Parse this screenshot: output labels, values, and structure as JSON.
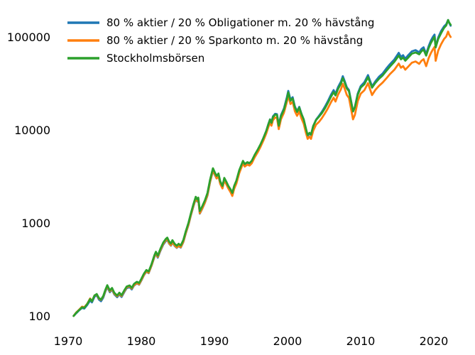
{
  "chart_data": {
    "type": "line",
    "title": "",
    "xlabel": "",
    "ylabel": "",
    "yscale": "log",
    "grid": false,
    "legend_position": "upper left",
    "xlim": [
      1969.2,
      2023.5
    ],
    "ylim": [
      85,
      210000
    ],
    "xticks": [
      1970,
      1980,
      1990,
      2000,
      2010,
      2020
    ],
    "yticks": [
      100,
      1000,
      10000,
      100000
    ],
    "x": [
      1970.75,
      1971.1,
      1971.5,
      1971.9,
      1972.2,
      1972.6,
      1973.0,
      1973.25,
      1973.6,
      1973.9,
      1974.2,
      1974.5,
      1974.8,
      1975.1,
      1975.35,
      1975.7,
      1976.0,
      1976.3,
      1976.7,
      1977.0,
      1977.3,
      1977.7,
      1978.0,
      1978.4,
      1978.7,
      1979.0,
      1979.4,
      1979.7,
      1980.0,
      1980.35,
      1980.7,
      1981.0,
      1981.4,
      1981.8,
      1982.0,
      1982.25,
      1982.6,
      1983.0,
      1983.35,
      1983.55,
      1983.8,
      1984.05,
      1984.25,
      1984.55,
      1984.85,
      1985.1,
      1985.4,
      1985.75,
      1986.1,
      1986.45,
      1986.8,
      1987.1,
      1987.45,
      1987.65,
      1987.8,
      1988.0,
      1988.35,
      1988.7,
      1989.05,
      1989.4,
      1989.8,
      1990.05,
      1990.3,
      1990.55,
      1990.8,
      1991.1,
      1991.35,
      1991.6,
      1991.9,
      1992.2,
      1992.45,
      1992.7,
      1993.0,
      1993.4,
      1993.9,
      1994.15,
      1994.5,
      1994.8,
      1995.1,
      1995.5,
      1995.9,
      1996.3,
      1996.7,
      1997.1,
      1997.35,
      1997.6,
      1997.8,
      1998.0,
      1998.3,
      1998.55,
      1998.8,
      1999.1,
      1999.5,
      1999.9,
      2000.1,
      2000.4,
      2000.7,
      2001.0,
      2001.3,
      2001.6,
      2001.9,
      2002.2,
      2002.5,
      2002.75,
      2003.0,
      2003.2,
      2003.5,
      2003.9,
      2004.3,
      2004.7,
      2005.1,
      2005.5,
      2005.9,
      2006.3,
      2006.55,
      2006.9,
      2007.3,
      2007.55,
      2007.8,
      2008.1,
      2008.4,
      2008.7,
      2008.95,
      2009.2,
      2009.6,
      2010.0,
      2010.5,
      2011.0,
      2011.55,
      2012.0,
      2012.5,
      2013.0,
      2013.5,
      2014.0,
      2014.6,
      2015.2,
      2015.5,
      2015.8,
      2016.1,
      2016.5,
      2017.0,
      2017.5,
      2018.0,
      2018.3,
      2018.6,
      2018.95,
      2019.3,
      2019.6,
      2019.9,
      2020.1,
      2020.25,
      2020.6,
      2021.0,
      2021.4,
      2021.7,
      2021.95,
      2022.1,
      2022.3
    ],
    "series": [
      {
        "name": "80 % aktier / 20 % Obligationer m. 20 % hävstång",
        "color": "#1f77b4",
        "values": [
          100,
          107,
          115,
          122,
          120,
          131,
          147,
          140,
          161,
          167,
          150,
          144,
          157,
          184,
          205,
          180,
          192,
          171,
          159,
          171,
          160,
          182,
          199,
          204,
          193,
          212,
          224,
          217,
          240,
          273,
          300,
          288,
          346,
          432,
          470,
          423,
          499,
          584,
          638,
          660,
          600,
          570,
          619,
          568,
          540,
          566,
          543,
          622,
          779,
          950,
          1220,
          1480,
          1810,
          1700,
          1780,
          1260,
          1430,
          1650,
          1970,
          2730,
          3640,
          3290,
          3010,
          3200,
          2630,
          2380,
          2900,
          2660,
          2380,
          2190,
          2000,
          2400,
          2740,
          3550,
          4510,
          4170,
          4370,
          4270,
          4560,
          5290,
          6040,
          6930,
          8200,
          9800,
          11400,
          13000,
          12000,
          14000,
          14900,
          14800,
          11300,
          14400,
          17000,
          22400,
          26300,
          21200,
          22500,
          17900,
          15900,
          17700,
          14900,
          13000,
          10300,
          8620,
          9210,
          8810,
          11000,
          12900,
          14200,
          15700,
          17700,
          20300,
          23600,
          26800,
          24400,
          28900,
          33100,
          37800,
          33800,
          28800,
          26800,
          20200,
          15800,
          17700,
          24700,
          29600,
          32600,
          38900,
          29400,
          33300,
          37300,
          40400,
          45600,
          50900,
          57200,
          67400,
          61000,
          63600,
          58300,
          63600,
          70000,
          72100,
          68300,
          74200,
          77400,
          65500,
          79800,
          91200,
          101000,
          106000,
          78500,
          98800,
          116000,
          130000,
          137000,
          152000,
          142000,
          132000
        ]
      },
      {
        "name": "80 % aktier / 20 % Sparkonto m. 20 % hävstång",
        "color": "#ff7f0e",
        "values": [
          100,
          109,
          117,
          126,
          124,
          135,
          154,
          144,
          166,
          170,
          154,
          149,
          162,
          188,
          210,
          184,
          196,
          174,
          163,
          174,
          164,
          186,
          203,
          209,
          197,
          214,
          226,
          219,
          243,
          275,
          303,
          291,
          349,
          437,
          475,
          432,
          509,
          597,
          652,
          674,
          607,
          576,
          626,
          574,
          545,
          572,
          549,
          629,
          787,
          960,
          1230,
          1500,
          1830,
          1720,
          1800,
          1270,
          1440,
          1660,
          2000,
          2760,
          3680,
          3330,
          3010,
          3200,
          2630,
          2350,
          2870,
          2630,
          2350,
          2140,
          1950,
          2330,
          2650,
          3440,
          4370,
          4040,
          4230,
          4140,
          4370,
          5080,
          5730,
          6580,
          7710,
          9210,
          10600,
          12000,
          11100,
          12700,
          13600,
          13500,
          10200,
          13000,
          15300,
          20000,
          23500,
          19000,
          20100,
          15900,
          14200,
          15800,
          13300,
          11700,
          9360,
          8010,
          8460,
          8010,
          9790,
          11400,
          12200,
          13400,
          15000,
          17000,
          19600,
          22200,
          20200,
          23900,
          27400,
          31300,
          28000,
          23800,
          22100,
          16600,
          13000,
          14500,
          20400,
          24500,
          26700,
          31800,
          23700,
          26900,
          29800,
          32300,
          35700,
          39800,
          44300,
          51700,
          46600,
          48600,
          44400,
          48000,
          52800,
          54400,
          51400,
          55300,
          57700,
          48500,
          59300,
          67100,
          74100,
          78000,
          55400,
          71300,
          83600,
          95000,
          101000,
          114000,
          106000,
          99900
        ]
      },
      {
        "name": "Stockholmsbörsen",
        "color": "#2ca02c",
        "values": [
          100,
          108,
          116,
          124,
          122,
          134,
          152,
          144,
          166,
          172,
          156,
          150,
          164,
          192,
          214,
          188,
          200,
          178,
          166,
          178,
          167,
          190,
          207,
          213,
          201,
          221,
          233,
          226,
          250,
          284,
          312,
          300,
          360,
          450,
          490,
          445,
          525,
          615,
          672,
          695,
          632,
          600,
          652,
          598,
          568,
          596,
          572,
          655,
          820,
          1000,
          1280,
          1560,
          1910,
          1790,
          1870,
          1340,
          1520,
          1750,
          2100,
          2900,
          3870,
          3500,
          3200,
          3400,
          2800,
          2500,
          3050,
          2800,
          2500,
          2300,
          2100,
          2500,
          2850,
          3700,
          4650,
          4300,
          4500,
          4400,
          4650,
          5400,
          6100,
          7000,
          8200,
          9800,
          11300,
          12900,
          11900,
          13700,
          14600,
          14500,
          11100,
          14000,
          16500,
          21500,
          25300,
          20600,
          21800,
          17500,
          15600,
          17400,
          14800,
          13000,
          10400,
          8800,
          9300,
          8900,
          11000,
          12800,
          13900,
          15200,
          17000,
          19500,
          22500,
          25500,
          23500,
          27500,
          31500,
          36000,
          32500,
          28000,
          26000,
          20000,
          15800,
          17500,
          24000,
          28500,
          31000,
          37000,
          28500,
          32000,
          35500,
          38500,
          43000,
          48000,
          54000,
          63000,
          57500,
          60000,
          55500,
          60000,
          66000,
          68000,
          65000,
          70000,
          73000,
          63000,
          76000,
          86000,
          95000,
          100000,
          77000,
          95000,
          110000,
          125000,
          133000,
          152000,
          143000,
          135000
        ]
      }
    ]
  }
}
